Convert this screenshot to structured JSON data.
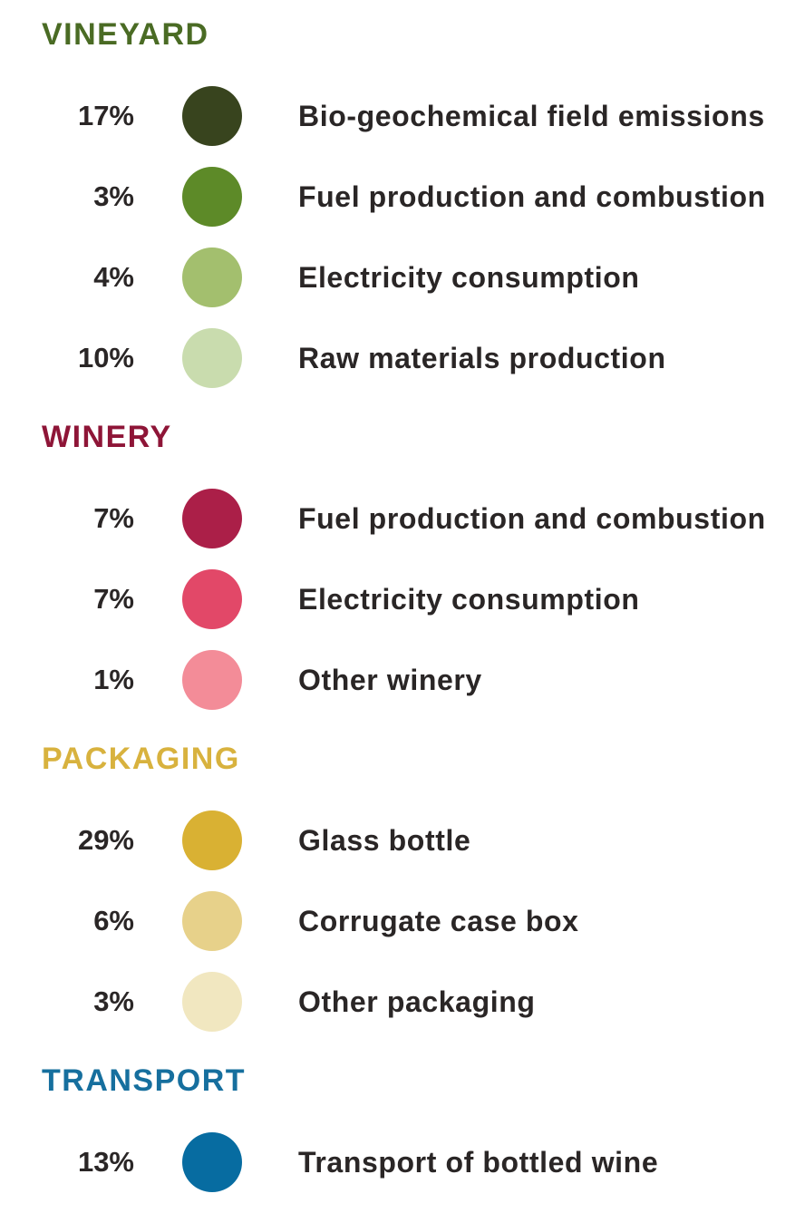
{
  "chart_data": {
    "type": "table",
    "title": "",
    "groups": [
      {
        "name": "VINEYARD",
        "color": "#4a6b24",
        "items": [
          {
            "pct": "17%",
            "value": 17,
            "label": "Bio-geochemical field emissions",
            "color": "#38441e"
          },
          {
            "pct": "3%",
            "value": 3,
            "label": "Fuel production and combustion",
            "color": "#5d8a28"
          },
          {
            "pct": "4%",
            "value": 4,
            "label": "Electricity consumption",
            "color": "#a3bf6e"
          },
          {
            "pct": "10%",
            "value": 10,
            "label": "Raw materials production",
            "color": "#c9dcae"
          }
        ]
      },
      {
        "name": "WINERY",
        "color": "#8e1537",
        "items": [
          {
            "pct": "7%",
            "value": 7,
            "label": "Fuel production and combustion",
            "color": "#ab1f48"
          },
          {
            "pct": "7%",
            "value": 7,
            "label": "Electricity consumption",
            "color": "#e24868"
          },
          {
            "pct": "1%",
            "value": 1,
            "label": "Other winery",
            "color": "#f38c98"
          }
        ]
      },
      {
        "name": "PACKAGING",
        "color": "#d8b23e",
        "items": [
          {
            "pct": "29%",
            "value": 29,
            "label": "Glass bottle",
            "color": "#d9b133"
          },
          {
            "pct": "6%",
            "value": 6,
            "label": "Corrugate case box",
            "color": "#e7d18a"
          },
          {
            "pct": "3%",
            "value": 3,
            "label": "Other packaging",
            "color": "#f1e7c0"
          }
        ]
      },
      {
        "name": "TRANSPORT",
        "color": "#166f9e",
        "items": [
          {
            "pct": "13%",
            "value": 13,
            "label": "Transport of bottled wine",
            "color": "#076ca1"
          }
        ]
      }
    ]
  }
}
